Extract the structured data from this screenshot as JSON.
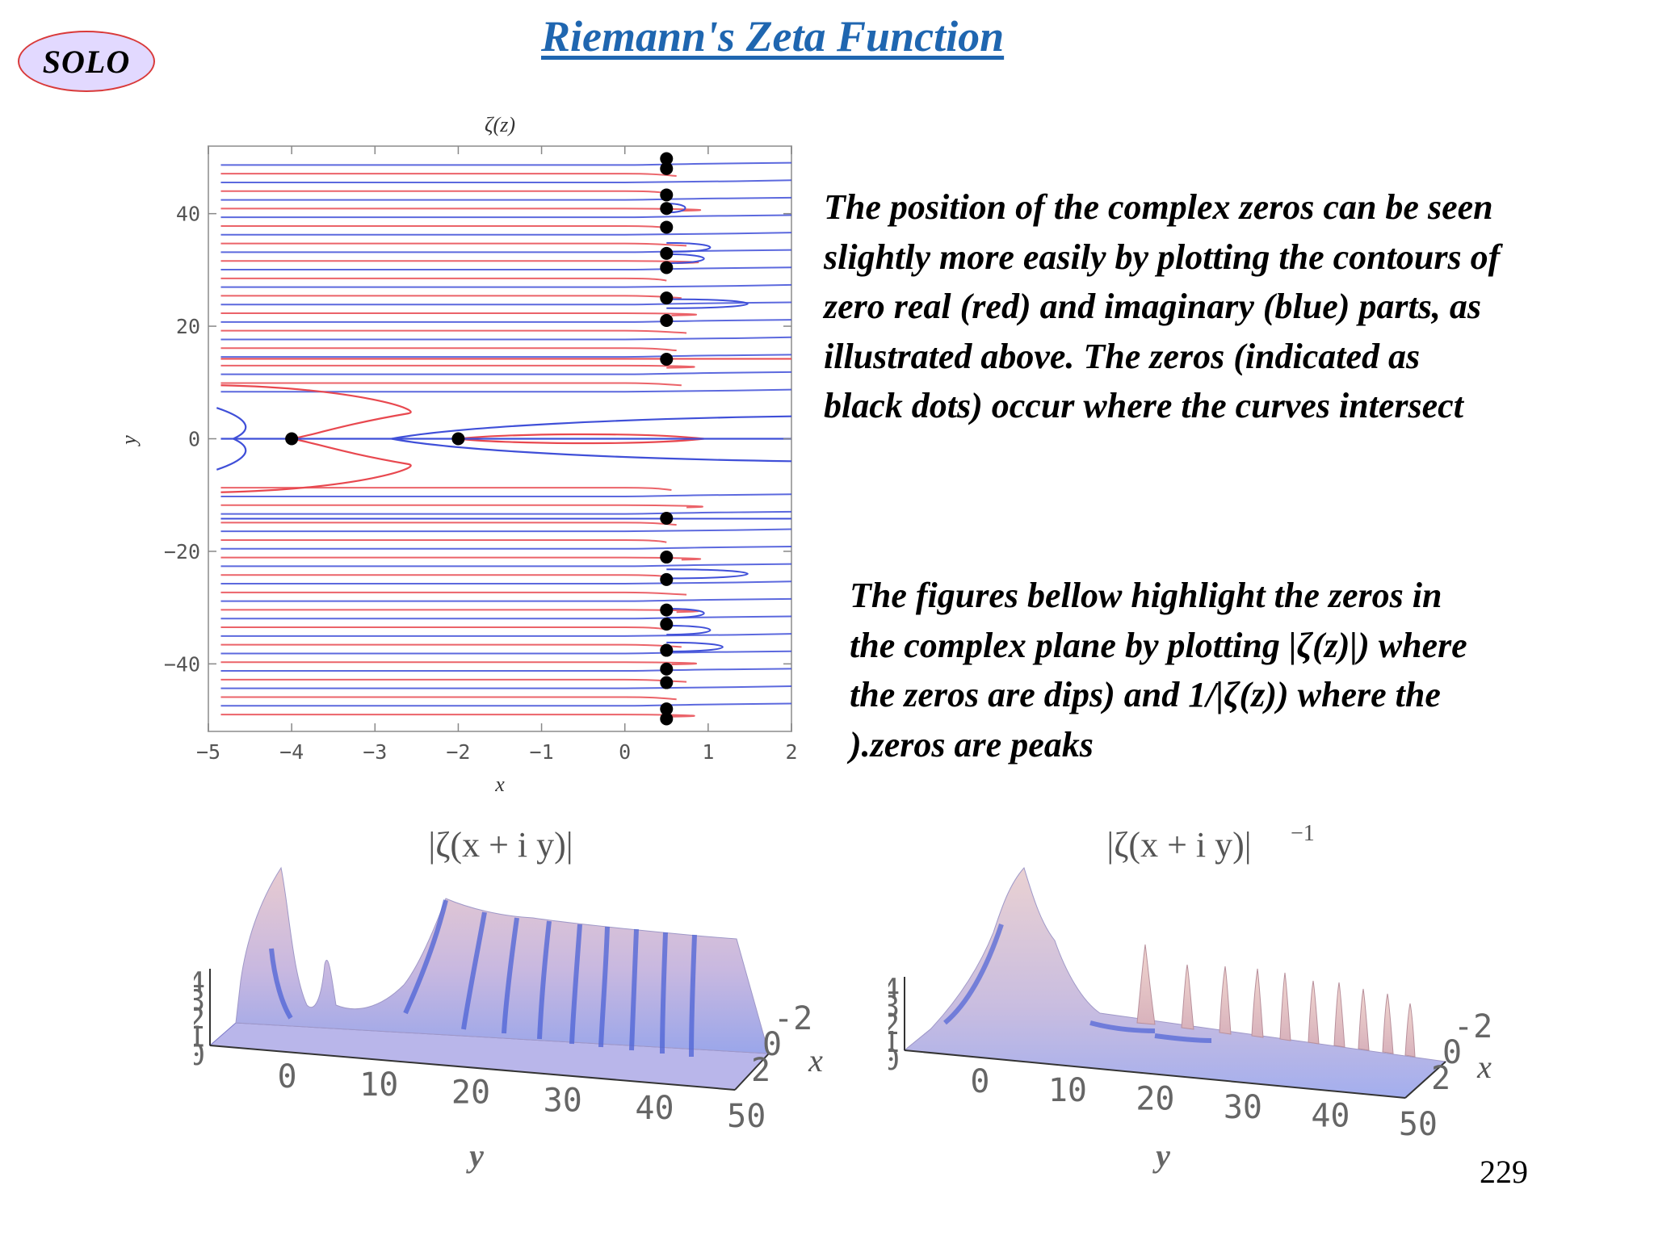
{
  "header": {
    "badge": "SOLO",
    "title": "Riemann's Zeta Function"
  },
  "text": {
    "para1_lines": [
      "The position of the complex zeros can be seen",
      "slightly more easily by plotting the contours of",
      "zero real (red) and imaginary (blue) parts, as",
      "illustrated above. The zeros (indicated as",
      "black dots) occur where the curves intersect"
    ],
    "para2_lines": [
      "The figures bellow  highlight the zeros in",
      "the complex plane by plotting |ζ(z)|) where",
      "the zeros are dips) and 1/|ζ(z)) where the",
      ").zeros are peaks"
    ]
  },
  "page_number": "229",
  "colors": {
    "title": "#1f66b0",
    "real_contour": "#e8484f",
    "imag_contour": "#3f4fd8",
    "zero_dot": "#000000"
  },
  "chart_data": [
    {
      "type": "scatter",
      "title": "ζ(z)",
      "xlabel": "x",
      "ylabel": "y",
      "xlim": [
        -5,
        2
      ],
      "ylim": [
        -52,
        52
      ],
      "xticks": [
        "-5",
        "-4",
        "-3",
        "-2",
        "-1",
        "0",
        "1",
        "2"
      ],
      "yticks": [
        "40",
        "20",
        "0",
        "-20",
        "-40"
      ],
      "grid": false,
      "series": [
        {
          "name": "zeros",
          "points": [
            {
              "x": -4,
              "y": 0
            },
            {
              "x": -2,
              "y": 0
            },
            {
              "x": 0.5,
              "y": 14.13
            },
            {
              "x": 0.5,
              "y": 21.02
            },
            {
              "x": 0.5,
              "y": 25.01
            },
            {
              "x": 0.5,
              "y": 30.42
            },
            {
              "x": 0.5,
              "y": 32.94
            },
            {
              "x": 0.5,
              "y": 37.59
            },
            {
              "x": 0.5,
              "y": 40.92
            },
            {
              "x": 0.5,
              "y": 43.33
            },
            {
              "x": 0.5,
              "y": 48.01
            },
            {
              "x": 0.5,
              "y": 49.77
            },
            {
              "x": 0.5,
              "y": -14.13
            },
            {
              "x": 0.5,
              "y": -21.02
            },
            {
              "x": 0.5,
              "y": -25.01
            },
            {
              "x": 0.5,
              "y": -30.42
            },
            {
              "x": 0.5,
              "y": -32.94
            },
            {
              "x": 0.5,
              "y": -37.59
            },
            {
              "x": 0.5,
              "y": -40.92
            },
            {
              "x": 0.5,
              "y": -43.33
            },
            {
              "x": 0.5,
              "y": -48.01
            },
            {
              "x": 0.5,
              "y": -49.77
            }
          ]
        }
      ]
    },
    {
      "type": "surface",
      "title": "|ζ(x + i y)|",
      "xlabel": "y",
      "ylabel": "x",
      "xticks": [
        "0",
        "10",
        "20",
        "30",
        "40",
        "50"
      ],
      "yticks": [
        "-2",
        "0",
        "2"
      ],
      "zticks": [
        "4",
        "3",
        "2",
        "1",
        "0"
      ]
    },
    {
      "type": "surface",
      "title": "|ζ(x + i y)|",
      "title_superscript": "−1",
      "xlabel": "y",
      "ylabel": "x",
      "xticks": [
        "0",
        "10",
        "20",
        "30",
        "40",
        "50"
      ],
      "yticks": [
        "-2",
        "0",
        "2"
      ],
      "zticks": [
        "4",
        "3",
        "2",
        "1",
        "0"
      ]
    }
  ]
}
